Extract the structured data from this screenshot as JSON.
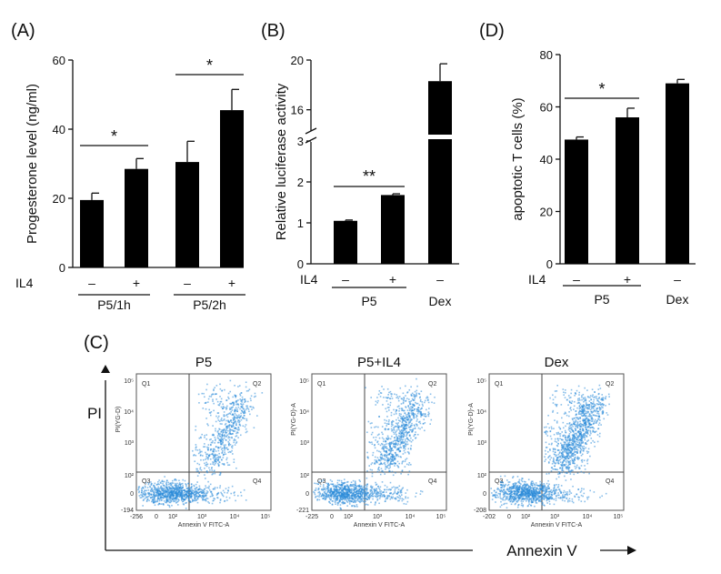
{
  "chart_data": [
    {
      "panel": "(A)",
      "type": "bar",
      "ylabel": "Progesterone level (ng/ml)",
      "ylim": [
        0,
        60
      ],
      "yticks": [
        "0",
        "20",
        "40",
        "60"
      ],
      "treatment_label": "IL4",
      "categories": [
        "–",
        "+",
        "–",
        "+"
      ],
      "values": [
        19.5,
        28.5,
        30.5,
        45.5
      ],
      "errors": [
        2.0,
        3.0,
        6.0,
        6.0
      ],
      "groups": [
        {
          "label": "P5/1h",
          "bars": [
            0,
            1
          ]
        },
        {
          "label": "P5/2h",
          "bars": [
            2,
            3
          ]
        }
      ],
      "significance": [
        {
          "bars": [
            0,
            1
          ],
          "label": "*"
        },
        {
          "bars": [
            2,
            3
          ],
          "label": "*"
        }
      ]
    },
    {
      "panel": "(B)",
      "type": "bar",
      "ylabel": "Relative luciferase activity",
      "axis_break": true,
      "ylim_lower": [
        0,
        3
      ],
      "ylim_upper": [
        14,
        20
      ],
      "yticks": [
        "0",
        "1",
        "2",
        "3",
        "16",
        "20"
      ],
      "treatment_label": "IL4",
      "categories": [
        "–",
        "+",
        "–"
      ],
      "values": [
        1.05,
        1.68,
        18.3
      ],
      "errors": [
        0.02,
        0.03,
        1.4
      ],
      "groups": [
        {
          "label": "P5",
          "bars": [
            0,
            1
          ]
        },
        {
          "label": "Dex",
          "bars": [
            2
          ]
        }
      ],
      "significance": [
        {
          "bars": [
            0,
            1
          ],
          "label": "**"
        }
      ]
    },
    {
      "panel": "(D)",
      "type": "bar",
      "ylabel": "apoptotic T cells (%)",
      "ylim": [
        0,
        80
      ],
      "yticks": [
        "0",
        "20",
        "40",
        "60",
        "80"
      ],
      "treatment_label": "IL4",
      "categories": [
        "–",
        "+",
        "–"
      ],
      "values": [
        47.5,
        56,
        69
      ],
      "errors": [
        1.0,
        3.5,
        1.5
      ],
      "groups": [
        {
          "label": "P5",
          "bars": [
            0,
            1
          ]
        },
        {
          "label": "Dex",
          "bars": [
            2
          ]
        }
      ],
      "significance": [
        {
          "bars": [
            0,
            1
          ],
          "label": "*"
        }
      ]
    },
    {
      "panel": "(C)",
      "type": "scatter",
      "y_axis_title": "PI",
      "x_axis_title": "Annexin V",
      "plots": [
        {
          "title": "P5",
          "ylabel": "PI(YG-D)",
          "xlabel": "Annexin V FITC-A",
          "xticks": [
            "-256",
            "0",
            "10²",
            "10³",
            "10⁴",
            "10⁵"
          ],
          "yticks": [
            "-194",
            "0",
            "10²",
            "10³",
            "10⁴",
            "10⁵"
          ],
          "quadrants": [
            "Q1",
            "Q2",
            "Q3",
            "Q4"
          ]
        },
        {
          "title": "P5+IL4",
          "ylabel": "PI(YG-D)-A",
          "xlabel": "Annexin V FITC-A",
          "xticks": [
            "-225",
            "0",
            "10²",
            "10³",
            "10⁴",
            "10⁵"
          ],
          "yticks": [
            "-221",
            "0",
            "10²",
            "10³",
            "10⁴",
            "10⁵"
          ],
          "quadrants": [
            "Q1",
            "Q2",
            "Q3",
            "Q4"
          ]
        },
        {
          "title": "Dex",
          "ylabel": "PI(YG-D)-A",
          "xlabel": "Annexin V FITC-A",
          "xticks": [
            "-202",
            "0",
            "10²",
            "10³",
            "10⁴",
            "10⁵"
          ],
          "yticks": [
            "-208",
            "0",
            "10²",
            "10³",
            "10⁴",
            "10⁵"
          ],
          "quadrants": [
            "Q1",
            "Q2",
            "Q3",
            "Q4"
          ]
        }
      ]
    }
  ],
  "colors": {
    "bar": "#000000",
    "dots": "#2a8ad8",
    "axis": "#111111"
  }
}
